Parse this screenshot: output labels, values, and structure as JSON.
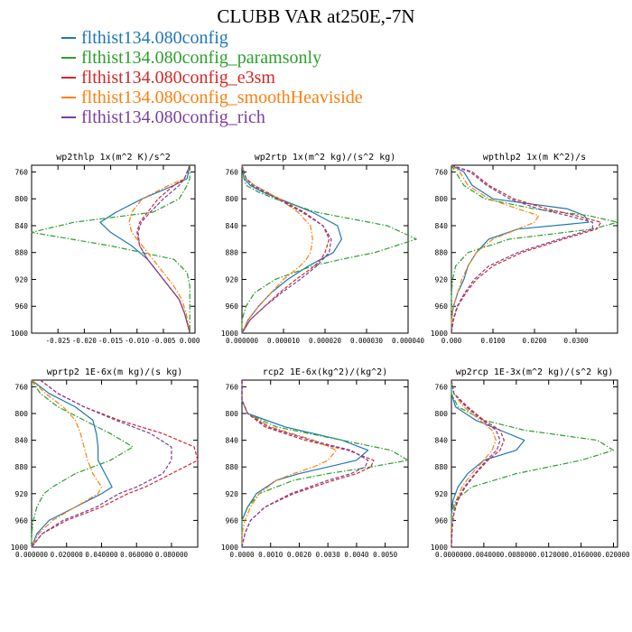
{
  "title": "CLUBB VAR at250E,-7N",
  "legend": [
    {
      "label": "flthist134.080config",
      "color": "#1f77b4",
      "dash": "solid"
    },
    {
      "label": "flthist134.080config_paramsonly",
      "color": "#2ca02c",
      "dash": "dashdot"
    },
    {
      "label": "flthist134.080config_e3sm",
      "color": "#d62728",
      "dash": "dashed"
    },
    {
      "label": "flthist134.080config_smoothHeaviside",
      "color": "#ff7f0e",
      "dash": "dashdot"
    },
    {
      "label": "flthist134.080config_rich",
      "color": "#7b3fa0",
      "dash": "dashed"
    }
  ],
  "chart_data": [
    {
      "type": "line",
      "title": "wp2thlp  1x(m^2 K)/s^2",
      "ylim": [
        1000,
        750
      ],
      "yticks": [
        760,
        800,
        840,
        880,
        920,
        960,
        1000
      ],
      "xlim": [
        -0.03,
        0.001
      ],
      "xticks": [
        -0.025,
        -0.02,
        -0.015,
        -0.01,
        -0.005,
        0.0
      ],
      "xticklabels": [
        "-0.025",
        "-0.020",
        "-0.015",
        "-0.010",
        "-0.005",
        "0.000"
      ],
      "y": [
        750,
        770,
        780,
        800,
        820,
        835,
        850,
        870,
        890,
        910,
        930,
        950,
        970,
        990,
        1000
      ],
      "series": [
        {
          "values": [
            0.0,
            -0.0005,
            -0.003,
            -0.009,
            -0.014,
            -0.017,
            -0.015,
            -0.011,
            -0.008,
            -0.006,
            -0.004,
            -0.002,
            -0.001,
            -0.0003,
            0.0
          ]
        },
        {
          "values": [
            0.0,
            0.0,
            -0.0005,
            -0.002,
            -0.007,
            -0.022,
            -0.03,
            -0.015,
            -0.003,
            -0.0005,
            0.0,
            0.0,
            0.0,
            0.0,
            0.0
          ]
        },
        {
          "values": [
            0.0,
            -0.001,
            -0.003,
            -0.006,
            -0.008,
            -0.0095,
            -0.01,
            -0.0095,
            -0.008,
            -0.006,
            -0.004,
            -0.002,
            -0.001,
            -0.0003,
            0.0
          ]
        },
        {
          "values": [
            0.0,
            -0.001,
            -0.004,
            -0.009,
            -0.011,
            -0.0115,
            -0.011,
            -0.009,
            -0.007,
            -0.005,
            -0.003,
            -0.0015,
            -0.0007,
            -0.0002,
            0.0
          ]
        },
        {
          "values": [
            0.0,
            -0.001,
            -0.002,
            -0.005,
            -0.0075,
            -0.0092,
            -0.0098,
            -0.0095,
            -0.008,
            -0.006,
            -0.004,
            -0.002,
            -0.001,
            -0.0003,
            0.0
          ]
        }
      ]
    },
    {
      "type": "line",
      "title": "wp2rtp  1x(m^2 kg)/(s^2 kg)",
      "ylim": [
        1000,
        750
      ],
      "yticks": [
        760,
        800,
        840,
        880,
        920,
        960,
        1000
      ],
      "xlim": [
        0.0,
        4e-05
      ],
      "xticks": [
        0.0,
        1e-05,
        2e-05,
        3e-05,
        4e-05
      ],
      "xticklabels": [
        "0.000000",
        "0.000010",
        "0.000020",
        "0.000030",
        "0.000040"
      ],
      "y": [
        750,
        770,
        780,
        790,
        800,
        820,
        840,
        860,
        880,
        890,
        900,
        920,
        940,
        960,
        980,
        1000
      ],
      "series": [
        {
          "values": [
            0.0,
            5e-07,
            2e-06,
            5e-06,
            9e-06,
            1.7e-05,
            2.3e-05,
            2.4e-05,
            2.2e-05,
            1.9e-05,
            1.6e-05,
            1.1e-05,
            7e-06,
            4e-06,
            1.5e-06,
            0.0
          ]
        },
        {
          "values": [
            0.0,
            5e-07,
            1e-06,
            4e-06,
            8e-06,
            1.8e-05,
            3.5e-05,
            4.2e-05,
            3.2e-05,
            2.4e-05,
            1.7e-05,
            8e-06,
            3e-06,
            1e-06,
            0.0,
            0.0
          ]
        },
        {
          "values": [
            0.0,
            1e-06,
            3e-06,
            6e-06,
            9e-06,
            1.5e-05,
            1.95e-05,
            2.1e-05,
            2e-05,
            1.9e-05,
            1.75e-05,
            1.3e-05,
            9e-06,
            5.5e-06,
            2e-06,
            0.0
          ]
        },
        {
          "values": [
            0.0,
            1e-06,
            3e-06,
            6e-06,
            9e-06,
            1.35e-05,
            1.65e-05,
            1.7e-05,
            1.65e-05,
            1.55e-05,
            1.4e-05,
            1e-05,
            7e-06,
            4e-06,
            1.5e-06,
            0.0
          ]
        },
        {
          "values": [
            0.0,
            1e-06,
            2.5e-06,
            5.5e-06,
            8.5e-06,
            1.45e-05,
            1.95e-05,
            2.15e-05,
            2.1e-05,
            1.95e-05,
            1.8e-05,
            1.4e-05,
            9.5e-06,
            5.5e-06,
            2e-06,
            0.0
          ]
        }
      ]
    },
    {
      "type": "line",
      "title": "wpthlp2  1x(m K^2)/s",
      "ylim": [
        1000,
        750
      ],
      "yticks": [
        760,
        800,
        840,
        880,
        920,
        960,
        1000
      ],
      "xlim": [
        0.0,
        0.04
      ],
      "xticks": [
        0.0,
        0.01,
        0.02,
        0.03
      ],
      "xticklabels": [
        "0.000",
        "0.0100",
        "0.0200",
        "0.0300"
      ],
      "y": [
        750,
        760,
        780,
        800,
        815,
        825,
        835,
        845,
        860,
        880,
        900,
        920,
        940,
        960,
        980,
        1000
      ],
      "series": [
        {
          "values": [
            0.0,
            0.003,
            0.005,
            0.01,
            0.028,
            0.032,
            0.033,
            0.016,
            0.009,
            0.006,
            0.004,
            0.003,
            0.0015,
            0.0005,
            0.0,
            0.0
          ]
        },
        {
          "values": [
            0.0,
            0.001,
            0.003,
            0.008,
            0.02,
            0.033,
            0.04,
            0.034,
            0.014,
            0.004,
            0.001,
            0.0003,
            0.0,
            0.0,
            0.0,
            0.0
          ]
        },
        {
          "values": [
            0.0,
            0.005,
            0.009,
            0.015,
            0.023,
            0.03,
            0.036,
            0.035,
            0.027,
            0.017,
            0.01,
            0.006,
            0.0035,
            0.0015,
            0.0005,
            0.0
          ]
        },
        {
          "values": [
            0.0,
            0.002,
            0.004,
            0.009,
            0.016,
            0.021,
            0.02,
            0.016,
            0.01,
            0.006,
            0.004,
            0.0025,
            0.0015,
            0.0005,
            0.0,
            0.0
          ]
        },
        {
          "values": [
            0.0,
            0.0045,
            0.0085,
            0.014,
            0.021,
            0.028,
            0.034,
            0.034,
            0.026,
            0.016,
            0.009,
            0.0055,
            0.0032,
            0.0014,
            0.0004,
            0.0
          ]
        }
      ]
    },
    {
      "type": "line",
      "title": "wprtp2  1E-6x(m kg)/(s kg)",
      "ylim": [
        1000,
        750
      ],
      "yticks": [
        760,
        800,
        840,
        880,
        920,
        960,
        1000
      ],
      "xlim": [
        0.0,
        0.095
      ],
      "xticks": [
        0.0,
        0.02,
        0.04,
        0.06,
        0.08
      ],
      "xticklabels": [
        "0.000000",
        "0.020000",
        "0.040000",
        "0.060000",
        "0.080000"
      ],
      "y": [
        750,
        770,
        790,
        810,
        830,
        850,
        870,
        890,
        910,
        920,
        940,
        960,
        980,
        1000
      ],
      "series": [
        {
          "values": [
            0.0,
            0.01,
            0.025,
            0.035,
            0.037,
            0.038,
            0.038,
            0.042,
            0.046,
            0.04,
            0.025,
            0.01,
            0.003,
            0.0
          ]
        },
        {
          "values": [
            0.0,
            0.005,
            0.015,
            0.03,
            0.045,
            0.058,
            0.045,
            0.025,
            0.012,
            0.007,
            0.003,
            0.001,
            0.0,
            0.0
          ]
        },
        {
          "values": [
            0.005,
            0.015,
            0.03,
            0.05,
            0.075,
            0.093,
            0.095,
            0.08,
            0.065,
            0.055,
            0.04,
            0.02,
            0.006,
            0.0
          ]
        },
        {
          "values": [
            0.0,
            0.008,
            0.018,
            0.025,
            0.028,
            0.03,
            0.032,
            0.035,
            0.04,
            0.038,
            0.025,
            0.012,
            0.004,
            0.0
          ]
        },
        {
          "values": [
            0.005,
            0.015,
            0.03,
            0.048,
            0.068,
            0.08,
            0.08,
            0.075,
            0.06,
            0.05,
            0.037,
            0.018,
            0.006,
            0.0
          ]
        }
      ]
    },
    {
      "type": "line",
      "title": "rcp2  1E-6x(kg^2)/(kg^2)",
      "ylim": [
        1000,
        750
      ],
      "yticks": [
        760,
        800,
        840,
        880,
        920,
        960,
        1000
      ],
      "xlim": [
        0.0,
        0.0058
      ],
      "xticks": [
        0.0,
        0.001,
        0.002,
        0.003,
        0.004,
        0.005
      ],
      "xticklabels": [
        "0.0000",
        "0.0010",
        "0.0020",
        "0.0030",
        "0.0040",
        "0.0050"
      ],
      "y": [
        750,
        780,
        800,
        820,
        840,
        855,
        870,
        880,
        890,
        900,
        920,
        940,
        960,
        980,
        1000
      ],
      "series": [
        {
          "values": [
            0.0,
            0.0,
            0.0002,
            0.0015,
            0.0035,
            0.0044,
            0.004,
            0.003,
            0.002,
            0.0012,
            0.0005,
            0.0002,
            0.0,
            0.0,
            0.0
          ]
        },
        {
          "values": [
            0.0,
            0.0,
            0.0002,
            0.0012,
            0.0035,
            0.0052,
            0.0058,
            0.0045,
            0.003,
            0.0018,
            0.0006,
            0.0002,
            0.0,
            0.0,
            0.0
          ]
        },
        {
          "values": [
            0.0,
            0.0,
            0.0002,
            0.0008,
            0.0022,
            0.0037,
            0.0046,
            0.0045,
            0.004,
            0.0032,
            0.0018,
            0.0008,
            0.0003,
            0.0001,
            0.0
          ]
        },
        {
          "values": [
            0.0,
            0.0,
            0.0002,
            0.001,
            0.0025,
            0.0033,
            0.003,
            0.0025,
            0.0018,
            0.0012,
            0.0006,
            0.0003,
            0.0001,
            0.0,
            0.0
          ]
        },
        {
          "values": [
            0.0,
            0.0,
            0.0002,
            0.0009,
            0.0024,
            0.0038,
            0.0044,
            0.0043,
            0.0038,
            0.003,
            0.0017,
            0.0008,
            0.0003,
            0.0001,
            0.0
          ]
        }
      ]
    },
    {
      "type": "line",
      "title": "wp2rcp  1E-3x(m^2 kg)/(s^2 kg)",
      "ylim": [
        1000,
        750
      ],
      "yticks": [
        760,
        800,
        840,
        880,
        920,
        960,
        1000
      ],
      "xlim": [
        0.0,
        0.0205
      ],
      "xticks": [
        0.0,
        0.004,
        0.008,
        0.012,
        0.016,
        0.02
      ],
      "xticklabels": [
        "0.000000",
        "0.004000",
        "0.008000",
        "0.012000",
        "0.016000",
        "0.020000"
      ],
      "y": [
        750,
        770,
        790,
        810,
        825,
        840,
        855,
        870,
        890,
        910,
        930,
        950,
        970,
        1000
      ],
      "series": [
        {
          "values": [
            0.0,
            0.0,
            0.0005,
            0.003,
            0.006,
            0.009,
            0.008,
            0.004,
            0.002,
            0.0008,
            0.0002,
            0.0,
            0.0,
            0.0
          ]
        },
        {
          "values": [
            0.0,
            0.0,
            0.0008,
            0.004,
            0.009,
            0.018,
            0.02,
            0.016,
            0.008,
            0.0025,
            0.0005,
            0.0,
            0.0,
            0.0
          ]
        },
        {
          "values": [
            0.0,
            0.0003,
            0.002,
            0.004,
            0.006,
            0.0065,
            0.006,
            0.0045,
            0.003,
            0.0017,
            0.0008,
            0.0003,
            0.0001,
            0.0
          ]
        },
        {
          "values": [
            0.0,
            0.0003,
            0.0015,
            0.0035,
            0.005,
            0.0055,
            0.005,
            0.004,
            0.0025,
            0.0013,
            0.0006,
            0.0002,
            0.0,
            0.0
          ]
        },
        {
          "values": [
            0.0,
            0.0003,
            0.0018,
            0.0038,
            0.0055,
            0.006,
            0.0056,
            0.0043,
            0.0029,
            0.0016,
            0.0007,
            0.0003,
            0.0001,
            0.0
          ]
        }
      ]
    }
  ]
}
